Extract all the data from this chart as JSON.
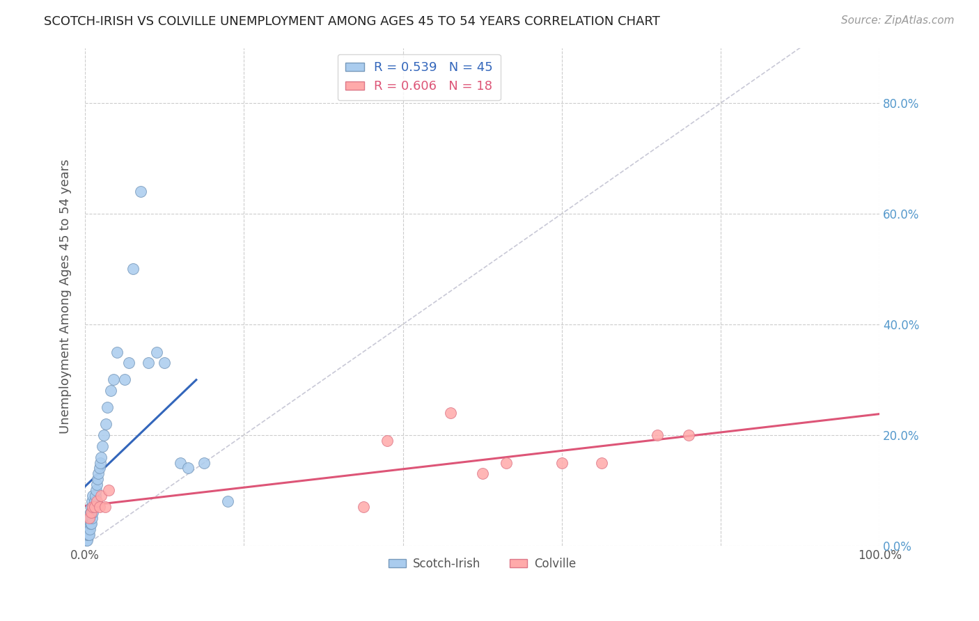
{
  "title": "SCOTCH-IRISH VS COLVILLE UNEMPLOYMENT AMONG AGES 45 TO 54 YEARS CORRELATION CHART",
  "source": "Source: ZipAtlas.com",
  "ylabel": "Unemployment Among Ages 45 to 54 years",
  "xlim": [
    0,
    1.0
  ],
  "ylim": [
    0,
    0.9
  ],
  "scotch_irish_color": "#aaccee",
  "scotch_irish_edge": "#7799bb",
  "colville_color": "#ffaaaa",
  "colville_edge": "#dd7788",
  "regression_line_color_blue": "#3366bb",
  "regression_line_color_pink": "#dd5577",
  "diagonal_color": "#bbbbcc",
  "background_color": "#ffffff",
  "grid_color": "#cccccc",
  "legend_R_blue": "0.539",
  "legend_N_blue": "45",
  "legend_R_pink": "0.606",
  "legend_N_pink": "18",
  "scotch_irish_x": [
    0.002,
    0.003,
    0.003,
    0.004,
    0.004,
    0.005,
    0.005,
    0.006,
    0.006,
    0.007,
    0.007,
    0.008,
    0.008,
    0.009,
    0.009,
    0.01,
    0.01,
    0.011,
    0.012,
    0.013,
    0.014,
    0.015,
    0.016,
    0.017,
    0.018,
    0.019,
    0.02,
    0.022,
    0.024,
    0.026,
    0.028,
    0.032,
    0.036,
    0.04,
    0.05,
    0.055,
    0.06,
    0.07,
    0.08,
    0.09,
    0.1,
    0.12,
    0.13,
    0.15,
    0.18
  ],
  "scotch_irish_y": [
    0.01,
    0.01,
    0.02,
    0.02,
    0.03,
    0.02,
    0.04,
    0.03,
    0.05,
    0.04,
    0.06,
    0.04,
    0.07,
    0.05,
    0.08,
    0.06,
    0.09,
    0.07,
    0.08,
    0.09,
    0.1,
    0.11,
    0.12,
    0.13,
    0.14,
    0.15,
    0.16,
    0.18,
    0.2,
    0.22,
    0.25,
    0.28,
    0.3,
    0.35,
    0.3,
    0.33,
    0.5,
    0.64,
    0.33,
    0.35,
    0.33,
    0.15,
    0.14,
    0.15,
    0.08
  ],
  "colville_x": [
    0.005,
    0.008,
    0.01,
    0.012,
    0.015,
    0.018,
    0.02,
    0.025,
    0.03,
    0.35,
    0.38,
    0.46,
    0.5,
    0.53,
    0.6,
    0.65,
    0.72,
    0.76
  ],
  "colville_y": [
    0.05,
    0.06,
    0.07,
    0.07,
    0.08,
    0.07,
    0.09,
    0.07,
    0.1,
    0.07,
    0.19,
    0.24,
    0.13,
    0.15,
    0.15,
    0.15,
    0.2,
    0.2
  ],
  "right_ytick_positions": [
    0.0,
    0.2,
    0.4,
    0.6,
    0.8
  ],
  "right_ytick_labels": [
    "0.0%",
    "20.0%",
    "40.0%",
    "60.0%",
    "80.0%"
  ],
  "xtick_positions": [
    0.0,
    0.2,
    0.4,
    0.6,
    0.8,
    1.0
  ],
  "xtick_labels": [
    "0.0%",
    "",
    "",
    "",
    "",
    "100.0%"
  ],
  "title_fontsize": 13,
  "source_fontsize": 11,
  "tick_fontsize": 12,
  "ylabel_fontsize": 13,
  "legend_fontsize": 13
}
